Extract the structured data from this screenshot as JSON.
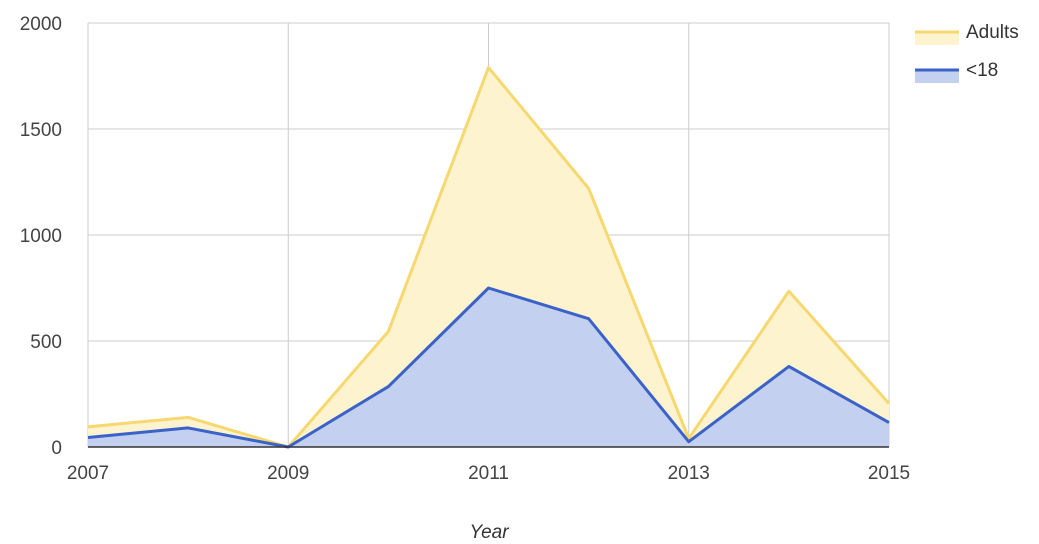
{
  "chart_data": {
    "type": "area",
    "stacked": true,
    "xlabel": "Year",
    "ylabel": "",
    "x": [
      2007,
      2008,
      2009,
      2010,
      2011,
      2012,
      2013,
      2014,
      2015
    ],
    "xticks": [
      "2007",
      "2009",
      "2011",
      "2013",
      "2015"
    ],
    "yticks": [
      "0",
      "500",
      "1000",
      "1500",
      "2000"
    ],
    "ylim": [
      0,
      2000
    ],
    "xlim": [
      2007,
      2015
    ],
    "grid": true,
    "legend_position": "right",
    "series": [
      {
        "name": "<18",
        "color": "#3a62c8",
        "fill": "#c3d0ef",
        "values": [
          45,
          90,
          0,
          285,
          750,
          605,
          25,
          380,
          115
        ]
      },
      {
        "name": "Adults",
        "color": "#f7d870",
        "fill": "#fdf3cf",
        "values": [
          50,
          50,
          0,
          260,
          1040,
          615,
          15,
          355,
          90
        ]
      }
    ]
  }
}
